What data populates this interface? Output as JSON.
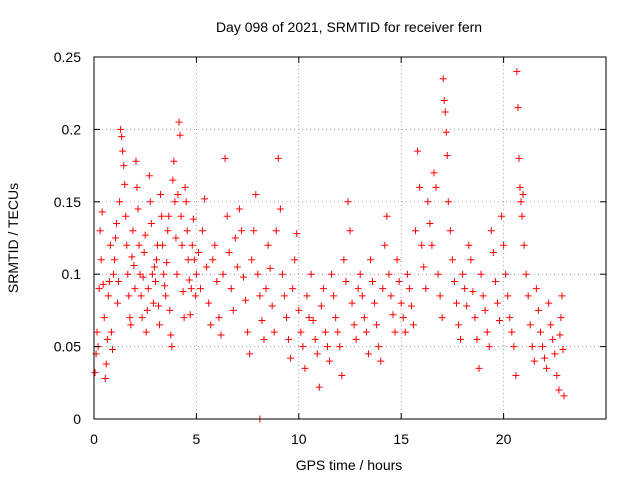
{
  "chart_data": {
    "type": "scatter",
    "title": "Day 098 of 2021, SRMTID for receiver fern",
    "xlabel": "GPS time / hours",
    "ylabel": "SRMTID / TECUs",
    "xlim": [
      0,
      25
    ],
    "ylim": [
      0,
      0.25
    ],
    "x_ticks": [
      0,
      5,
      10,
      15,
      20
    ],
    "x_tick_labels": [
      "0",
      "5",
      "10",
      "15",
      "20"
    ],
    "y_ticks": [
      0,
      0.05,
      0.1,
      0.15,
      0.2,
      0.25
    ],
    "y_tick_labels": [
      "0",
      "0.05",
      "0.1",
      "0.15",
      "0.2",
      "0.25"
    ],
    "grid": true,
    "marker": "+",
    "series": [
      {
        "name": "SRMTID",
        "color": "#ff0000",
        "points": [
          [
            0.05,
            0.032
          ],
          [
            0.1,
            0.045
          ],
          [
            0.15,
            0.06
          ],
          [
            0.2,
            0.05
          ],
          [
            0.25,
            0.09
          ],
          [
            0.3,
            0.13
          ],
          [
            0.35,
            0.11
          ],
          [
            0.4,
            0.143
          ],
          [
            0.45,
            0.093
          ],
          [
            0.5,
            0.07
          ],
          [
            0.55,
            0.028
          ],
          [
            0.6,
            0.038
          ],
          [
            0.65,
            0.055
          ],
          [
            0.7,
            0.085
          ],
          [
            0.75,
            0.095
          ],
          [
            0.8,
            0.12
          ],
          [
            0.85,
            0.06
          ],
          [
            0.9,
            0.048
          ],
          [
            0.95,
            0.1
          ],
          [
            1.0,
            0.11
          ],
          [
            1.05,
            0.125
          ],
          [
            1.1,
            0.135
          ],
          [
            1.15,
            0.08
          ],
          [
            1.2,
            0.095
          ],
          [
            1.25,
            0.15
          ],
          [
            1.3,
            0.2
          ],
          [
            1.35,
            0.195
          ],
          [
            1.4,
            0.185
          ],
          [
            1.45,
            0.175
          ],
          [
            1.5,
            0.162
          ],
          [
            1.55,
            0.14
          ],
          [
            1.6,
            0.12
          ],
          [
            1.65,
            0.1
          ],
          [
            1.7,
            0.085
          ],
          [
            1.75,
            0.07
          ],
          [
            1.8,
            0.065
          ],
          [
            1.85,
            0.112
          ],
          [
            1.9,
            0.13
          ],
          [
            1.95,
            0.106
          ],
          [
            2.0,
            0.09
          ],
          [
            2.05,
            0.178
          ],
          [
            2.1,
            0.16
          ],
          [
            2.15,
            0.145
          ],
          [
            2.2,
            0.12
          ],
          [
            2.25,
            0.1
          ],
          [
            2.3,
            0.085
          ],
          [
            2.35,
            0.07
          ],
          [
            2.4,
            0.098
          ],
          [
            2.45,
            0.115
          ],
          [
            2.5,
            0.127
          ],
          [
            2.55,
            0.06
          ],
          [
            2.6,
            0.075
          ],
          [
            2.65,
            0.09
          ],
          [
            2.7,
            0.168
          ],
          [
            2.75,
            0.15
          ],
          [
            2.8,
            0.135
          ],
          [
            2.85,
            0.1
          ],
          [
            2.9,
            0.08
          ],
          [
            2.95,
            0.105
          ],
          [
            3.0,
            0.095
          ],
          [
            3.05,
            0.11
          ],
          [
            3.1,
            0.12
          ],
          [
            3.15,
            0.078
          ],
          [
            3.2,
            0.065
          ],
          [
            3.25,
            0.155
          ],
          [
            3.3,
            0.14
          ],
          [
            3.35,
            0.12
          ],
          [
            3.4,
            0.1
          ],
          [
            3.45,
            0.092
          ],
          [
            3.5,
            0.085
          ],
          [
            3.55,
            0.108
          ],
          [
            3.6,
            0.13
          ],
          [
            3.65,
            0.14
          ],
          [
            3.7,
            0.075
          ],
          [
            3.75,
            0.058
          ],
          [
            3.8,
            0.05
          ],
          [
            3.85,
            0.165
          ],
          [
            3.9,
            0.178
          ],
          [
            3.95,
            0.15
          ],
          [
            4.0,
            0.125
          ],
          [
            4.05,
            0.1
          ],
          [
            4.1,
            0.155
          ],
          [
            4.15,
            0.205
          ],
          [
            4.2,
            0.196
          ],
          [
            4.25,
            0.14
          ],
          [
            4.3,
            0.12
          ],
          [
            4.35,
            0.088
          ],
          [
            4.4,
            0.07
          ],
          [
            4.45,
            0.16
          ],
          [
            4.5,
            0.15
          ],
          [
            4.55,
            0.13
          ],
          [
            4.6,
            0.11
          ],
          [
            4.65,
            0.096
          ],
          [
            4.7,
            0.072
          ],
          [
            4.75,
            0.09
          ],
          [
            4.8,
            0.12
          ],
          [
            4.85,
            0.138
          ],
          [
            4.9,
            0.11
          ],
          [
            4.95,
            0.085
          ],
          [
            5.0,
            0.1
          ],
          [
            5.1,
            0.115
          ],
          [
            5.2,
            0.09
          ],
          [
            5.3,
            0.13
          ],
          [
            5.4,
            0.152
          ],
          [
            5.5,
            0.105
          ],
          [
            5.6,
            0.08
          ],
          [
            5.7,
            0.065
          ],
          [
            5.8,
            0.11
          ],
          [
            5.9,
            0.12
          ],
          [
            6.0,
            0.095
          ],
          [
            6.1,
            0.07
          ],
          [
            6.2,
            0.058
          ],
          [
            6.3,
            0.1
          ],
          [
            6.4,
            0.18
          ],
          [
            6.5,
            0.14
          ],
          [
            6.6,
            0.115
          ],
          [
            6.7,
            0.09
          ],
          [
            6.8,
            0.075
          ],
          [
            6.9,
            0.125
          ],
          [
            7.0,
            0.105
          ],
          [
            7.1,
            0.145
          ],
          [
            7.2,
            0.13
          ],
          [
            7.3,
            0.098
          ],
          [
            7.4,
            0.082
          ],
          [
            7.5,
            0.06
          ],
          [
            7.6,
            0.045
          ],
          [
            7.7,
            0.11
          ],
          [
            7.8,
            0.13
          ],
          [
            7.9,
            0.155
          ],
          [
            8.0,
            0.1
          ],
          [
            8.1,
            0.085
          ],
          [
            8.2,
            0.068
          ],
          [
            8.3,
            0.055
          ],
          [
            8.4,
            0.09
          ],
          [
            8.5,
            0.12
          ],
          [
            8.6,
            0.104
          ],
          [
            8.7,
            0.078
          ],
          [
            8.8,
            0.06
          ],
          [
            8.9,
            0.13
          ],
          [
            9.0,
            0.18
          ],
          [
            9.1,
            0.145
          ],
          [
            9.2,
            0.1
          ],
          [
            9.3,
            0.085
          ],
          [
            9.4,
            0.07
          ],
          [
            9.5,
            0.055
          ],
          [
            9.6,
            0.042
          ],
          [
            9.7,
            0.09
          ],
          [
            9.8,
            0.11
          ],
          [
            9.9,
            0.128
          ],
          [
            10.0,
            0.075
          ],
          [
            10.1,
            0.06
          ],
          [
            10.2,
            0.05
          ],
          [
            10.3,
            0.035
          ],
          [
            10.4,
            0.085
          ],
          [
            10.5,
            0.07
          ],
          [
            10.6,
            0.1
          ],
          [
            10.7,
            0.068
          ],
          [
            10.8,
            0.055
          ],
          [
            10.9,
            0.045
          ],
          [
            11.0,
            0.022
          ],
          [
            11.1,
            0.078
          ],
          [
            11.2,
            0.09
          ],
          [
            11.3,
            0.06
          ],
          [
            11.4,
            0.05
          ],
          [
            11.5,
            0.04
          ],
          [
            11.6,
            0.1
          ],
          [
            11.7,
            0.085
          ],
          [
            11.8,
            0.07
          ],
          [
            11.9,
            0.06
          ],
          [
            12.0,
            0.05
          ],
          [
            12.1,
            0.03
          ],
          [
            12.2,
            0.11
          ],
          [
            12.3,
            0.095
          ],
          [
            12.4,
            0.15
          ],
          [
            12.5,
            0.13
          ],
          [
            12.6,
            0.08
          ],
          [
            12.7,
            0.065
          ],
          [
            12.8,
            0.055
          ],
          [
            12.9,
            0.09
          ],
          [
            13.0,
            0.1
          ],
          [
            13.1,
            0.085
          ],
          [
            13.2,
            0.07
          ],
          [
            13.3,
            0.06
          ],
          [
            13.4,
            0.045
          ],
          [
            13.5,
            0.11
          ],
          [
            13.6,
            0.095
          ],
          [
            13.7,
            0.08
          ],
          [
            13.8,
            0.065
          ],
          [
            13.9,
            0.05
          ],
          [
            14.0,
            0.04
          ],
          [
            14.1,
            0.09
          ],
          [
            14.2,
            0.12
          ],
          [
            14.3,
            0.14
          ],
          [
            14.4,
            0.1
          ],
          [
            14.5,
            0.085
          ],
          [
            14.6,
            0.072
          ],
          [
            14.7,
            0.06
          ],
          [
            14.8,
            0.11
          ],
          [
            14.9,
            0.095
          ],
          [
            15.0,
            0.08
          ],
          [
            15.1,
            0.07
          ],
          [
            15.2,
            0.06
          ],
          [
            15.3,
            0.1
          ],
          [
            15.4,
            0.09
          ],
          [
            15.5,
            0.078
          ],
          [
            15.6,
            0.065
          ],
          [
            15.7,
            0.13
          ],
          [
            15.8,
            0.185
          ],
          [
            15.9,
            0.16
          ],
          [
            16.0,
            0.12
          ],
          [
            16.1,
            0.105
          ],
          [
            16.2,
            0.09
          ],
          [
            16.3,
            0.15
          ],
          [
            16.4,
            0.135
          ],
          [
            16.5,
            0.12
          ],
          [
            16.6,
            0.17
          ],
          [
            16.7,
            0.16
          ],
          [
            16.8,
            0.1
          ],
          [
            16.9,
            0.085
          ],
          [
            17.0,
            0.07
          ],
          [
            17.05,
            0.235
          ],
          [
            17.1,
            0.22
          ],
          [
            17.15,
            0.212
          ],
          [
            17.2,
            0.198
          ],
          [
            17.25,
            0.182
          ],
          [
            17.3,
            0.15
          ],
          [
            17.4,
            0.13
          ],
          [
            17.5,
            0.11
          ],
          [
            17.6,
            0.095
          ],
          [
            17.7,
            0.08
          ],
          [
            17.8,
            0.065
          ],
          [
            17.9,
            0.055
          ],
          [
            18.0,
            0.1
          ],
          [
            18.1,
            0.09
          ],
          [
            18.2,
            0.078
          ],
          [
            18.3,
            0.12
          ],
          [
            18.4,
            0.11
          ],
          [
            18.5,
            0.088
          ],
          [
            18.6,
            0.07
          ],
          [
            18.7,
            0.055
          ],
          [
            18.8,
            0.035
          ],
          [
            18.9,
            0.1
          ],
          [
            19.0,
            0.085
          ],
          [
            19.1,
            0.075
          ],
          [
            19.2,
            0.06
          ],
          [
            19.3,
            0.05
          ],
          [
            19.4,
            0.13
          ],
          [
            19.5,
            0.115
          ],
          [
            19.6,
            0.095
          ],
          [
            19.7,
            0.08
          ],
          [
            19.8,
            0.068
          ],
          [
            19.9,
            0.14
          ],
          [
            20.0,
            0.12
          ],
          [
            20.1,
            0.1
          ],
          [
            20.2,
            0.085
          ],
          [
            20.3,
            0.07
          ],
          [
            20.4,
            0.06
          ],
          [
            20.5,
            0.05
          ],
          [
            20.6,
            0.03
          ],
          [
            20.65,
            0.24
          ],
          [
            20.7,
            0.215
          ],
          [
            20.75,
            0.18
          ],
          [
            20.8,
            0.16
          ],
          [
            20.85,
            0.15
          ],
          [
            20.9,
            0.14
          ],
          [
            20.95,
            0.155
          ],
          [
            21.0,
            0.12
          ],
          [
            21.1,
            0.1
          ],
          [
            21.2,
            0.085
          ],
          [
            21.3,
            0.065
          ],
          [
            21.4,
            0.05
          ],
          [
            21.5,
            0.04
          ],
          [
            21.6,
            0.09
          ],
          [
            21.7,
            0.075
          ],
          [
            21.8,
            0.06
          ],
          [
            21.9,
            0.05
          ],
          [
            22.0,
            0.042
          ],
          [
            22.1,
            0.035
          ],
          [
            22.2,
            0.08
          ],
          [
            22.3,
            0.065
          ],
          [
            22.4,
            0.055
          ],
          [
            22.5,
            0.045
          ],
          [
            22.6,
            0.03
          ],
          [
            22.7,
            0.02
          ],
          [
            22.75,
            0.058
          ],
          [
            22.8,
            0.07
          ],
          [
            22.85,
            0.085
          ],
          [
            22.9,
            0.048
          ],
          [
            22.95,
            0.016
          ],
          [
            8.1,
            0.0
          ]
        ]
      }
    ]
  }
}
